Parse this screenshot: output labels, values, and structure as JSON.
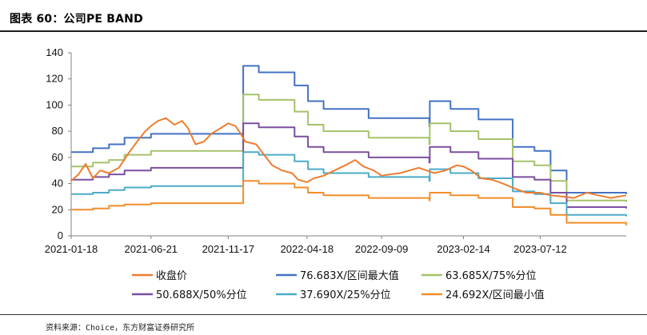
{
  "header": {
    "title": "图表 60：公司PE BAND"
  },
  "footer": {
    "source": "资料来源：Choice，东方财富证券研究所"
  },
  "chart_data": {
    "type": "line",
    "title": "",
    "xlabel": "",
    "ylabel": "",
    "ylim": [
      0,
      140
    ],
    "yticks": [
      0,
      20,
      40,
      60,
      80,
      100,
      120,
      140
    ],
    "xticks": [
      "2021-01-18",
      "2021-06-21",
      "2021-11-17",
      "2022-04-18",
      "2022-09-09",
      "2023-02-14",
      "2023-07-12"
    ],
    "xrange": [
      "2021-01-18",
      "2023-12-25"
    ],
    "grid": false,
    "legend_position": "bottom",
    "series": [
      {
        "name": "收盘价",
        "color": "#ED7D31",
        "points": [
          [
            "2021-01-18",
            42
          ],
          [
            "2021-02-01",
            47
          ],
          [
            "2021-02-15",
            55
          ],
          [
            "2021-03-01",
            44
          ],
          [
            "2021-03-15",
            50
          ],
          [
            "2021-04-01",
            48
          ],
          [
            "2021-04-20",
            52
          ],
          [
            "2021-05-10",
            64
          ],
          [
            "2021-05-25",
            72
          ],
          [
            "2021-06-10",
            80
          ],
          [
            "2021-06-21",
            84
          ],
          [
            "2021-07-05",
            88
          ],
          [
            "2021-07-20",
            90
          ],
          [
            "2021-08-05",
            85
          ],
          [
            "2021-08-20",
            88
          ],
          [
            "2021-09-01",
            82
          ],
          [
            "2021-09-15",
            70
          ],
          [
            "2021-10-01",
            72
          ],
          [
            "2021-10-15",
            78
          ],
          [
            "2021-11-01",
            82
          ],
          [
            "2021-11-17",
            86
          ],
          [
            "2021-12-01",
            84
          ],
          [
            "2021-12-10",
            79
          ],
          [
            "2021-12-20",
            72
          ],
          [
            "2022-01-10",
            70
          ],
          [
            "2022-01-25",
            62
          ],
          [
            "2022-02-10",
            54
          ],
          [
            "2022-03-01",
            50
          ],
          [
            "2022-03-20",
            48
          ],
          [
            "2022-04-01",
            43
          ],
          [
            "2022-04-18",
            41
          ],
          [
            "2022-05-01",
            44
          ],
          [
            "2022-05-20",
            46
          ],
          [
            "2022-06-10",
            50
          ],
          [
            "2022-07-01",
            54
          ],
          [
            "2022-07-20",
            58
          ],
          [
            "2022-08-05",
            53
          ],
          [
            "2022-08-25",
            50
          ],
          [
            "2022-09-09",
            46
          ],
          [
            "2022-09-25",
            47
          ],
          [
            "2022-10-15",
            48
          ],
          [
            "2022-11-01",
            50
          ],
          [
            "2022-11-20",
            52
          ],
          [
            "2022-12-05",
            50
          ],
          [
            "2022-12-20",
            48
          ],
          [
            "2023-01-10",
            50
          ],
          [
            "2023-02-01",
            54
          ],
          [
            "2023-02-14",
            53
          ],
          [
            "2023-03-01",
            50
          ],
          [
            "2023-03-20",
            44
          ],
          [
            "2023-04-10",
            43
          ],
          [
            "2023-05-01",
            40
          ],
          [
            "2023-05-25",
            36
          ],
          [
            "2023-06-15",
            33
          ],
          [
            "2023-07-12",
            33
          ],
          [
            "2023-08-01",
            31
          ],
          [
            "2023-08-25",
            30
          ],
          [
            "2023-09-15",
            29
          ],
          [
            "2023-10-10",
            33
          ],
          [
            "2023-11-01",
            31
          ],
          [
            "2023-11-25",
            29
          ],
          [
            "2023-12-25",
            31
          ]
        ]
      },
      {
        "name": "76.683X/区间最大值",
        "color": "#4472C4",
        "points": [
          [
            "2021-01-18",
            64
          ],
          [
            "2021-03-01",
            67
          ],
          [
            "2021-04-01",
            70
          ],
          [
            "2021-05-01",
            75
          ],
          [
            "2021-06-21",
            78
          ],
          [
            "2021-12-15",
            78
          ],
          [
            "2021-12-16",
            130
          ],
          [
            "2022-01-15",
            125
          ],
          [
            "2022-03-25",
            115
          ],
          [
            "2022-04-20",
            103
          ],
          [
            "2022-05-20",
            97
          ],
          [
            "2022-08-15",
            90
          ],
          [
            "2022-12-10",
            84
          ],
          [
            "2022-12-11",
            103
          ],
          [
            "2023-01-20",
            97
          ],
          [
            "2023-03-15",
            89
          ],
          [
            "2023-05-20",
            68
          ],
          [
            "2023-07-01",
            65
          ],
          [
            "2023-08-01",
            50
          ],
          [
            "2023-09-01",
            33
          ],
          [
            "2023-12-25",
            32
          ]
        ]
      },
      {
        "name": "63.685X/75%分位",
        "color": "#A5C26A",
        "points": [
          [
            "2021-01-18",
            53
          ],
          [
            "2021-03-01",
            56
          ],
          [
            "2021-04-01",
            58
          ],
          [
            "2021-05-01",
            62
          ],
          [
            "2021-06-21",
            65
          ],
          [
            "2021-12-15",
            65
          ],
          [
            "2021-12-16",
            108
          ],
          [
            "2022-01-15",
            104
          ],
          [
            "2022-03-25",
            95
          ],
          [
            "2022-04-20",
            85
          ],
          [
            "2022-05-20",
            80
          ],
          [
            "2022-08-15",
            75
          ],
          [
            "2022-12-10",
            70
          ],
          [
            "2022-12-11",
            86
          ],
          [
            "2023-01-20",
            80
          ],
          [
            "2023-03-15",
            74
          ],
          [
            "2023-05-20",
            57
          ],
          [
            "2023-07-01",
            54
          ],
          [
            "2023-08-01",
            42
          ],
          [
            "2023-09-01",
            27
          ],
          [
            "2023-12-25",
            26
          ]
        ]
      },
      {
        "name": "50.688X/50%分位",
        "color": "#7B4FA0",
        "points": [
          [
            "2021-01-18",
            43
          ],
          [
            "2021-03-01",
            45
          ],
          [
            "2021-04-01",
            47
          ],
          [
            "2021-05-01",
            50
          ],
          [
            "2021-06-21",
            52
          ],
          [
            "2021-12-15",
            52
          ],
          [
            "2021-12-16",
            86
          ],
          [
            "2022-01-15",
            83
          ],
          [
            "2022-03-25",
            76
          ],
          [
            "2022-04-20",
            68
          ],
          [
            "2022-05-20",
            64
          ],
          [
            "2022-08-15",
            60
          ],
          [
            "2022-12-10",
            56
          ],
          [
            "2022-12-11",
            68
          ],
          [
            "2023-01-20",
            64
          ],
          [
            "2023-03-15",
            59
          ],
          [
            "2023-05-20",
            45
          ],
          [
            "2023-07-01",
            43
          ],
          [
            "2023-08-01",
            33
          ],
          [
            "2023-09-01",
            22
          ],
          [
            "2023-12-25",
            21
          ]
        ]
      },
      {
        "name": "37.690X/25%分位",
        "color": "#4BACC6",
        "points": [
          [
            "2021-01-18",
            32
          ],
          [
            "2021-03-01",
            33
          ],
          [
            "2021-04-01",
            35
          ],
          [
            "2021-05-01",
            37
          ],
          [
            "2021-06-21",
            38
          ],
          [
            "2021-12-15",
            38
          ],
          [
            "2021-12-16",
            64
          ],
          [
            "2022-01-15",
            62
          ],
          [
            "2022-03-25",
            57
          ],
          [
            "2022-04-20",
            51
          ],
          [
            "2022-05-20",
            48
          ],
          [
            "2022-08-15",
            45
          ],
          [
            "2022-12-10",
            42
          ],
          [
            "2022-12-11",
            51
          ],
          [
            "2023-01-20",
            48
          ],
          [
            "2023-03-15",
            44
          ],
          [
            "2023-05-20",
            34
          ],
          [
            "2023-07-01",
            32
          ],
          [
            "2023-08-01",
            25
          ],
          [
            "2023-09-01",
            16
          ],
          [
            "2023-12-25",
            15
          ]
        ]
      },
      {
        "name": "24.692X/区间最小值",
        "color": "#F28E2B",
        "points": [
          [
            "2021-01-18",
            20
          ],
          [
            "2021-03-01",
            21
          ],
          [
            "2021-04-01",
            23
          ],
          [
            "2021-05-01",
            24
          ],
          [
            "2021-06-21",
            25
          ],
          [
            "2021-12-15",
            25
          ],
          [
            "2021-12-16",
            42
          ],
          [
            "2022-01-15",
            40
          ],
          [
            "2022-03-25",
            37
          ],
          [
            "2022-04-20",
            33
          ],
          [
            "2022-05-20",
            31
          ],
          [
            "2022-08-15",
            29
          ],
          [
            "2022-12-10",
            27
          ],
          [
            "2022-12-11",
            33
          ],
          [
            "2023-01-20",
            31
          ],
          [
            "2023-03-15",
            29
          ],
          [
            "2023-05-20",
            22
          ],
          [
            "2023-07-01",
            21
          ],
          [
            "2023-08-01",
            16
          ],
          [
            "2023-09-01",
            10
          ],
          [
            "2023-12-25",
            8
          ]
        ]
      }
    ]
  }
}
